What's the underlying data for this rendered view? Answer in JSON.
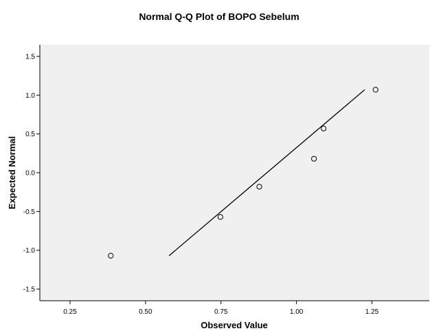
{
  "chart_data": {
    "type": "scatter",
    "title": "Normal Q-Q Plot of BOPO Sebelum",
    "xlabel": "Observed Value",
    "ylabel": "Expected Normal",
    "xlim": [
      0.15,
      1.44
    ],
    "ylim": [
      -1.65,
      1.65
    ],
    "xticks": [
      0.25,
      0.5,
      0.75,
      1.0,
      1.25
    ],
    "xtick_labels": [
      "0.25",
      "0.50",
      "0.75",
      "1.00",
      "1.25"
    ],
    "yticks": [
      1.5,
      1.0,
      0.5,
      0.0,
      -0.5,
      -1.0,
      -1.5
    ],
    "ytick_labels": [
      "1.5",
      "1.0",
      "0.5",
      "0.0",
      "-0.5",
      "-1.0",
      "-1.5"
    ],
    "points": [
      {
        "x": 0.385,
        "y": -1.07
      },
      {
        "x": 0.748,
        "y": -0.57
      },
      {
        "x": 0.877,
        "y": -0.18
      },
      {
        "x": 1.058,
        "y": 0.18
      },
      {
        "x": 1.09,
        "y": 0.57
      },
      {
        "x": 1.262,
        "y": 1.07
      }
    ],
    "reference_line": {
      "x1": 0.578,
      "y1": -1.07,
      "x2": 1.226,
      "y2": 1.07
    },
    "grid": false,
    "legend": "none",
    "colors": {
      "plot_background": "#f0f0f0",
      "page_background": "#ffffff",
      "marker_stroke": "#000000",
      "line": "#000000"
    }
  }
}
